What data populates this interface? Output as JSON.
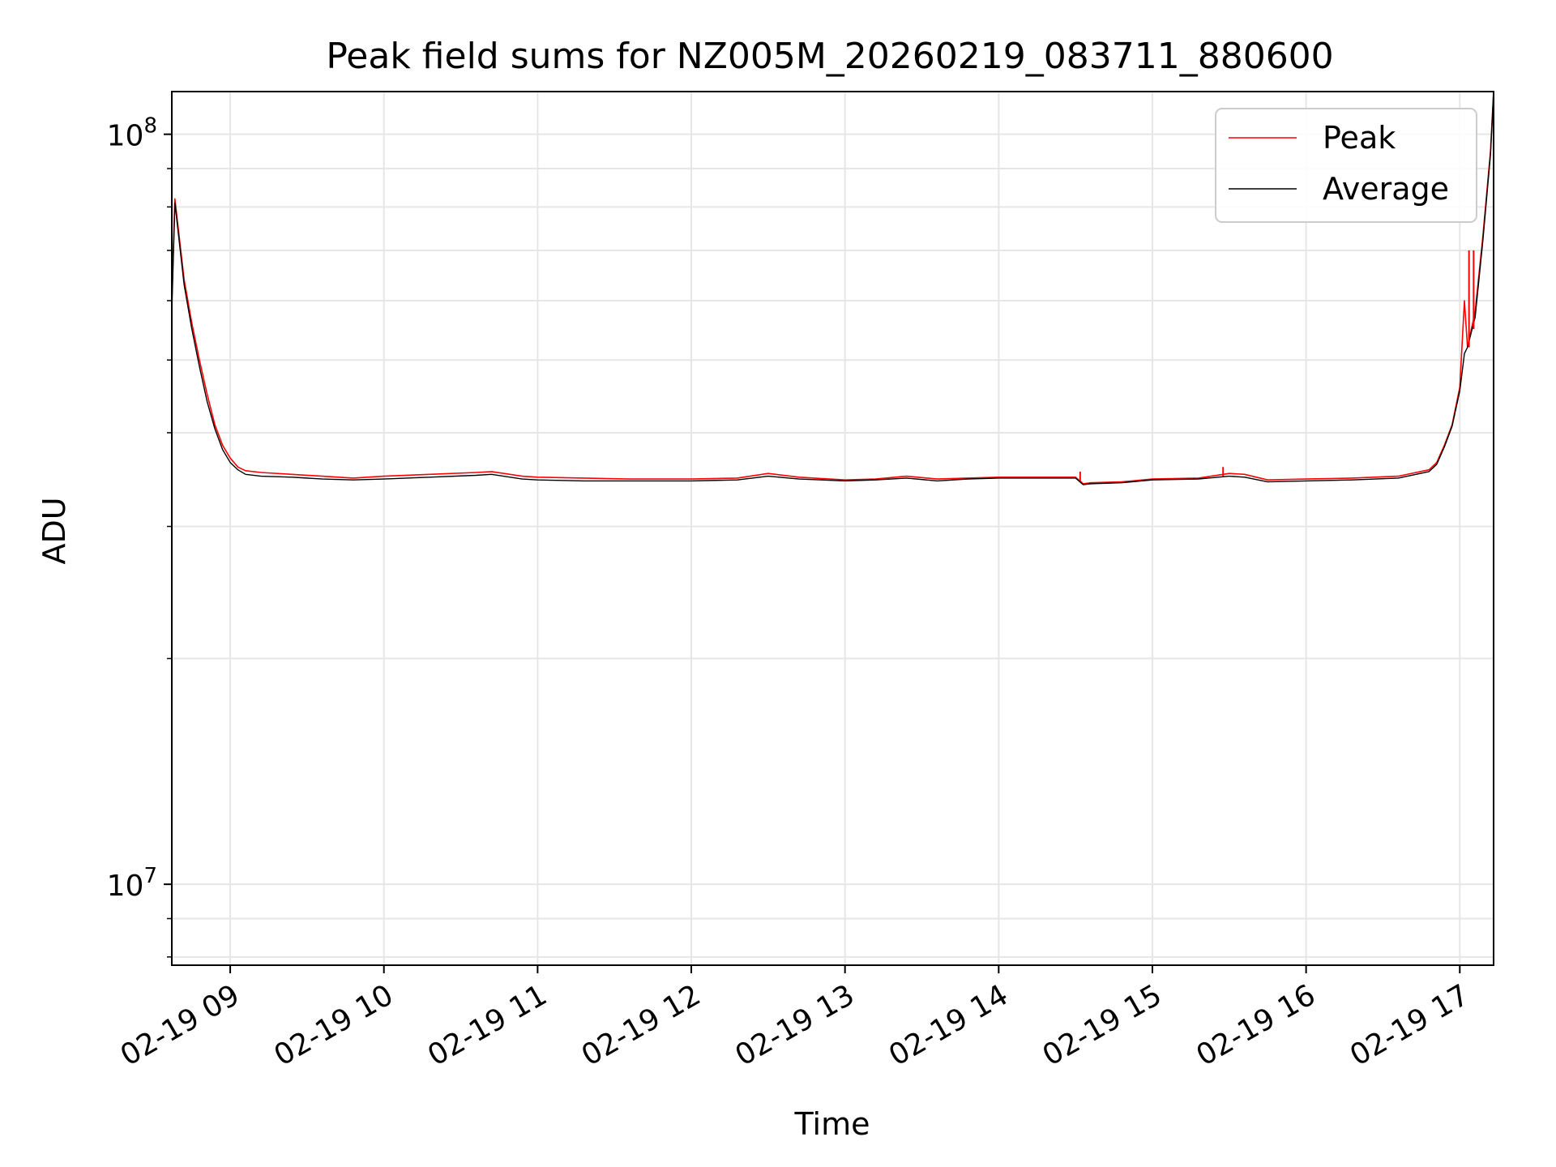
{
  "chart_data": {
    "type": "line",
    "title": "Peak field sums for NZ005M_20260219_083711_880600",
    "xlabel": "Time",
    "ylabel": "ADU",
    "yscale": "log",
    "xlim": [
      8.62,
      17.22
    ],
    "ylim": [
      7800000,
      114000000
    ],
    "grid": true,
    "legend_position": "top-right",
    "x_ticks": [
      {
        "value": 9,
        "label": "02-19 09"
      },
      {
        "value": 10,
        "label": "02-19 10"
      },
      {
        "value": 11,
        "label": "02-19 11"
      },
      {
        "value": 12,
        "label": "02-19 12"
      },
      {
        "value": 13,
        "label": "02-19 13"
      },
      {
        "value": 14,
        "label": "02-19 14"
      },
      {
        "value": 15,
        "label": "02-19 15"
      },
      {
        "value": 16,
        "label": "02-19 16"
      },
      {
        "value": 17,
        "label": "02-19 17"
      }
    ],
    "y_major_ticks": [
      {
        "value": 10000000,
        "base": "10",
        "exp": "7"
      },
      {
        "value": 100000000,
        "base": "10",
        "exp": "8"
      }
    ],
    "y_minor_ticks": [
      8000000,
      9000000,
      20000000,
      30000000,
      40000000,
      50000000,
      60000000,
      70000000,
      80000000,
      90000000
    ],
    "series": [
      {
        "name": "Peak",
        "color": "#ff0000",
        "x": [
          8.62,
          8.64,
          8.7,
          8.75,
          8.8,
          8.85,
          8.9,
          8.95,
          9.0,
          9.05,
          9.1,
          9.2,
          9.4,
          9.6,
          9.8,
          10.0,
          10.3,
          10.6,
          10.7,
          10.9,
          11.0,
          11.3,
          11.6,
          12.0,
          12.3,
          12.5,
          12.7,
          13.0,
          13.2,
          13.4,
          13.6,
          13.8,
          14.0,
          14.3,
          14.5,
          14.55,
          14.6,
          14.8,
          15.0,
          15.3,
          15.5,
          15.6,
          15.75,
          16.0,
          16.3,
          16.6,
          16.8,
          16.85,
          16.9,
          16.95,
          17.0,
          17.03,
          17.05,
          17.1,
          17.15,
          17.2,
          17.22
        ],
        "y": [
          60000000,
          82000000,
          64000000,
          56000000,
          50000000,
          45000000,
          41000000,
          38500000,
          37000000,
          36000000,
          35600000,
          35400000,
          35200000,
          35000000,
          34800000,
          35000000,
          35200000,
          35400000,
          35500000,
          35000000,
          34900000,
          34800000,
          34700000,
          34700000,
          34800000,
          35300000,
          34900000,
          34600000,
          34700000,
          35000000,
          34700000,
          34800000,
          34900000,
          34900000,
          34900000,
          34200000,
          34300000,
          34400000,
          34700000,
          34800000,
          35300000,
          35200000,
          34600000,
          34700000,
          34800000,
          35000000,
          35700000,
          36500000,
          38500000,
          41000000,
          46000000,
          60000000,
          52000000,
          58000000,
          73000000,
          95000000,
          114000000
        ]
      },
      {
        "name": "Average",
        "color": "#000000",
        "x": [
          8.62,
          8.64,
          8.7,
          8.75,
          8.8,
          8.85,
          8.9,
          8.95,
          9.0,
          9.05,
          9.1,
          9.2,
          9.4,
          9.6,
          9.8,
          10.0,
          10.3,
          10.6,
          10.7,
          10.9,
          11.0,
          11.3,
          11.6,
          12.0,
          12.3,
          12.5,
          12.7,
          13.0,
          13.2,
          13.4,
          13.6,
          13.8,
          14.0,
          14.3,
          14.5,
          14.55,
          14.6,
          14.8,
          15.0,
          15.3,
          15.5,
          15.6,
          15.75,
          16.0,
          16.3,
          16.6,
          16.8,
          16.85,
          16.9,
          16.95,
          17.0,
          17.03,
          17.05,
          17.1,
          17.15,
          17.2,
          17.22
        ],
        "y": [
          58000000,
          81000000,
          63000000,
          55000000,
          49000000,
          44000000,
          40500000,
          38000000,
          36500000,
          35700000,
          35200000,
          35000000,
          34900000,
          34700000,
          34600000,
          34700000,
          34900000,
          35100000,
          35200000,
          34700000,
          34600000,
          34500000,
          34500000,
          34500000,
          34600000,
          35000000,
          34700000,
          34500000,
          34600000,
          34800000,
          34500000,
          34700000,
          34800000,
          34800000,
          34800000,
          34100000,
          34200000,
          34300000,
          34600000,
          34700000,
          35000000,
          34900000,
          34400000,
          34500000,
          34600000,
          34800000,
          35500000,
          36300000,
          38300000,
          40800000,
          45500000,
          51000000,
          52000000,
          57000000,
          72000000,
          94000000,
          114000000
        ]
      }
    ],
    "peak_spikes": [
      {
        "x": 17.06,
        "y_bottom": 52000000,
        "y_top": 70000000
      },
      {
        "x": 17.09,
        "y_bottom": 55000000,
        "y_top": 70000000
      },
      {
        "x": 14.53,
        "y_bottom": 34500000,
        "y_top": 35500000
      },
      {
        "x": 15.46,
        "y_bottom": 35000000,
        "y_top": 36000000
      }
    ]
  }
}
